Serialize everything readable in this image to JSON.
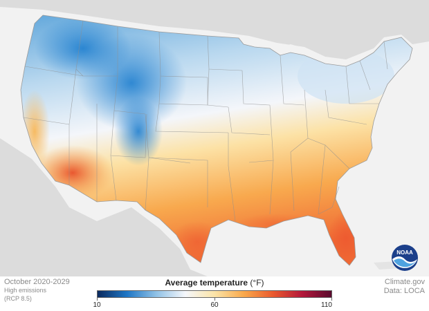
{
  "map": {
    "caption_period": "October 2020-2029",
    "scenario_line1": "High emissions",
    "scenario_line2": "(RCP 8.5)",
    "credit_site": "Climate.gov",
    "credit_data": "Data: LOCA",
    "logo_text": "NOAA",
    "land_color": "#dcdcdc",
    "background_color": "#f2f2f2"
  },
  "legend": {
    "title": "Average temperature",
    "unit": "(°F)",
    "ticks": [
      "10",
      "60",
      "110"
    ],
    "range": [
      10,
      110
    ],
    "colors": [
      "#0b2a5e",
      "#1e76c5",
      "#8fc1e6",
      "#f5f7fb",
      "#fbe4a8",
      "#f9a94b",
      "#ea5a2e",
      "#b3173a",
      "#5a0a2e"
    ]
  }
}
